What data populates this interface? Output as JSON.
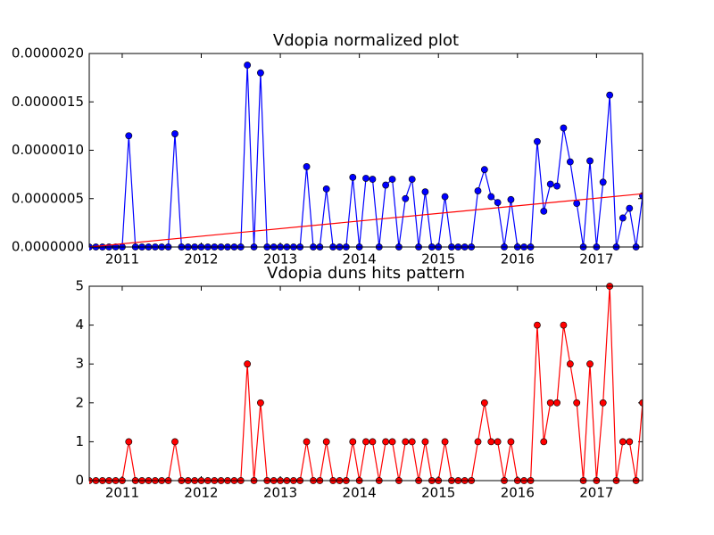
{
  "chart_data": [
    {
      "type": "line",
      "title": "Vdopia normalized plot",
      "x": [
        2010.583,
        2010.667,
        2010.75,
        2010.833,
        2010.917,
        2011.0,
        2011.083,
        2011.167,
        2011.25,
        2011.333,
        2011.417,
        2011.5,
        2011.583,
        2011.667,
        2011.75,
        2011.833,
        2011.917,
        2012.0,
        2012.083,
        2012.167,
        2012.25,
        2012.333,
        2012.417,
        2012.5,
        2012.583,
        2012.667,
        2012.75,
        2012.833,
        2012.917,
        2013.0,
        2013.083,
        2013.167,
        2013.25,
        2013.333,
        2013.417,
        2013.5,
        2013.583,
        2013.667,
        2013.75,
        2013.833,
        2013.917,
        2014.0,
        2014.083,
        2014.167,
        2014.25,
        2014.333,
        2014.417,
        2014.5,
        2014.583,
        2014.667,
        2014.75,
        2014.833,
        2014.917,
        2015.0,
        2015.083,
        2015.167,
        2015.25,
        2015.333,
        2015.417,
        2015.5,
        2015.583,
        2015.667,
        2015.75,
        2015.833,
        2015.917,
        2016.0,
        2016.083,
        2016.167,
        2016.25,
        2016.333,
        2016.417,
        2016.5,
        2016.583,
        2016.667,
        2016.75,
        2016.833,
        2016.917,
        2017.0,
        2017.083,
        2017.167,
        2017.25,
        2017.333,
        2017.417,
        2017.5,
        2017.583
      ],
      "series": [
        {
          "color": "#0000ff",
          "marker": true,
          "values": [
            0,
            0,
            0,
            0,
            0,
            0,
            1.15e-06,
            0,
            0,
            0,
            0,
            0,
            0,
            1.17e-06,
            0,
            0,
            0,
            0,
            0,
            0,
            0,
            0,
            0,
            0,
            1.88e-06,
            0,
            1.8e-06,
            0,
            0,
            0,
            0,
            0,
            0,
            8.3e-07,
            0,
            0,
            6e-07,
            0,
            0,
            0,
            7.2e-07,
            0,
            7.1e-07,
            7e-07,
            0,
            6.4e-07,
            7e-07,
            0,
            5e-07,
            7e-07,
            0,
            5.7e-07,
            0,
            0,
            5.2e-07,
            0,
            0,
            0,
            0,
            5.8e-07,
            8e-07,
            5.2e-07,
            4.6e-07,
            0,
            4.9e-07,
            0,
            0,
            0,
            1.09e-06,
            3.7e-07,
            6.5e-07,
            6.3e-07,
            1.23e-06,
            8.8e-07,
            4.5e-07,
            0,
            8.9e-07,
            0,
            6.7e-07,
            1.57e-06,
            0,
            3e-07,
            4e-07,
            0,
            5.3e-07
          ]
        },
        {
          "color": "#ff0000",
          "marker": false,
          "x": [
            2010.583,
            2017.583
          ],
          "values": [
            0,
            5.5e-07
          ]
        }
      ],
      "xlim": [
        2010.583,
        2017.583
      ],
      "xticks": [
        2011,
        2012,
        2013,
        2014,
        2015,
        2016,
        2017
      ],
      "ylim": [
        0,
        2e-06
      ],
      "yticks": [
        {
          "value": 0,
          "label": "0.0000000"
        },
        {
          "value": 5e-07,
          "label": "0.0000005"
        },
        {
          "value": 1e-06,
          "label": "0.0000010"
        },
        {
          "value": 1.5e-06,
          "label": "0.0000015"
        },
        {
          "value": 2e-06,
          "label": "0.0000020"
        }
      ]
    },
    {
      "type": "line",
      "title": "Vdopia duns hits pattern",
      "x": [
        2010.583,
        2010.667,
        2010.75,
        2010.833,
        2010.917,
        2011.0,
        2011.083,
        2011.167,
        2011.25,
        2011.333,
        2011.417,
        2011.5,
        2011.583,
        2011.667,
        2011.75,
        2011.833,
        2011.917,
        2012.0,
        2012.083,
        2012.167,
        2012.25,
        2012.333,
        2012.417,
        2012.5,
        2012.583,
        2012.667,
        2012.75,
        2012.833,
        2012.917,
        2013.0,
        2013.083,
        2013.167,
        2013.25,
        2013.333,
        2013.417,
        2013.5,
        2013.583,
        2013.667,
        2013.75,
        2013.833,
        2013.917,
        2014.0,
        2014.083,
        2014.167,
        2014.25,
        2014.333,
        2014.417,
        2014.5,
        2014.583,
        2014.667,
        2014.75,
        2014.833,
        2014.917,
        2015.0,
        2015.083,
        2015.167,
        2015.25,
        2015.333,
        2015.417,
        2015.5,
        2015.583,
        2015.667,
        2015.75,
        2015.833,
        2015.917,
        2016.0,
        2016.083,
        2016.167,
        2016.25,
        2016.333,
        2016.417,
        2016.5,
        2016.583,
        2016.667,
        2016.75,
        2016.833,
        2016.917,
        2017.0,
        2017.083,
        2017.167,
        2017.25,
        2017.333,
        2017.417,
        2017.5,
        2017.583
      ],
      "series": [
        {
          "color": "#ff0000",
          "marker": true,
          "values": [
            0,
            0,
            0,
            0,
            0,
            0,
            1,
            0,
            0,
            0,
            0,
            0,
            0,
            1,
            0,
            0,
            0,
            0,
            0,
            0,
            0,
            0,
            0,
            0,
            3,
            0,
            2,
            0,
            0,
            0,
            0,
            0,
            0,
            1,
            0,
            0,
            1,
            0,
            0,
            0,
            1,
            0,
            1,
            1,
            0,
            1,
            1,
            0,
            1,
            1,
            0,
            1,
            0,
            0,
            1,
            0,
            0,
            0,
            0,
            1,
            2,
            1,
            1,
            0,
            1,
            0,
            0,
            0,
            4,
            1,
            2,
            2,
            4,
            3,
            2,
            0,
            3,
            0,
            2,
            5,
            0,
            1,
            1,
            0,
            2
          ]
        }
      ],
      "xlim": [
        2010.583,
        2017.583
      ],
      "xticks": [
        2011,
        2012,
        2013,
        2014,
        2015,
        2016,
        2017
      ],
      "ylim": [
        0,
        5
      ],
      "yticks": [
        0,
        1,
        2,
        3,
        4,
        5
      ]
    }
  ]
}
